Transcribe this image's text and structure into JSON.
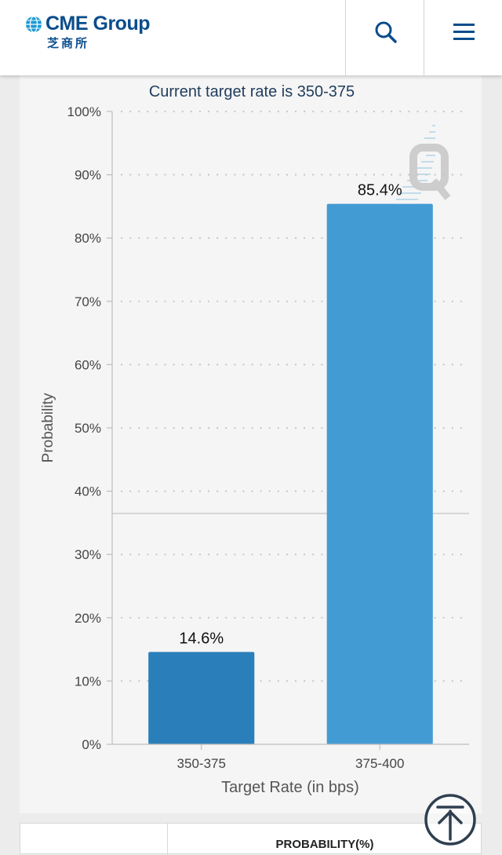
{
  "header": {
    "brand_name": "CME Group",
    "brand_sub": "芝商所",
    "brand_color": "#0a4d8c"
  },
  "chart_data": {
    "type": "bar",
    "title": "Current target rate is 350-375",
    "xlabel": "Target Rate (in bps)",
    "ylabel": "Probability",
    "categories": [
      "350-375",
      "375-400"
    ],
    "values": [
      14.6,
      85.4
    ],
    "value_labels": [
      "14.6%",
      "85.4%"
    ],
    "bar_colors": [
      "#2a7fba",
      "#439bd4"
    ],
    "ylim": [
      0,
      100
    ],
    "yticks": [
      0,
      10,
      20,
      30,
      40,
      50,
      60,
      70,
      80,
      90,
      100
    ],
    "ytick_labels": [
      "0%",
      "10%",
      "20%",
      "30%",
      "40%",
      "50%",
      "60%",
      "70%",
      "80%",
      "90%",
      "100%"
    ],
    "grid": true,
    "legend": "none"
  },
  "table": {
    "probability_header": "PROBABILITY(%)"
  }
}
